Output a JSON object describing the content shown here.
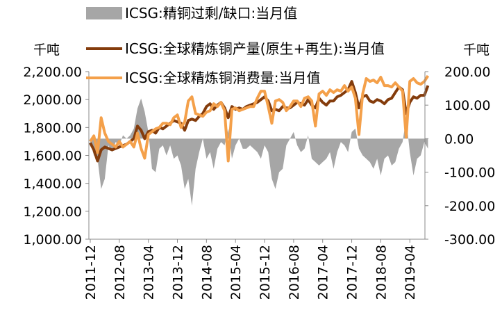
{
  "chart_data": {
    "type": "line",
    "y_unit": "千吨",
    "y2_unit": "千吨",
    "categories": [
      "2011-12",
      null,
      null,
      null,
      null,
      null,
      null,
      null,
      "2012-08",
      null,
      null,
      null,
      null,
      null,
      null,
      null,
      "2013-04",
      null,
      null,
      null,
      null,
      null,
      null,
      null,
      "2013-12",
      null,
      null,
      null,
      null,
      null,
      null,
      null,
      "2014-08",
      null,
      null,
      null,
      null,
      null,
      null,
      null,
      "2015-04",
      null,
      null,
      null,
      null,
      null,
      null,
      null,
      "2015-12",
      null,
      null,
      null,
      null,
      null,
      null,
      null,
      "2016-08",
      null,
      null,
      null,
      null,
      null,
      null,
      null,
      "2017-04",
      null,
      null,
      null,
      null,
      null,
      null,
      null,
      "2017-12",
      null,
      null,
      null,
      null,
      null,
      null,
      null,
      "2018-08",
      null,
      null,
      null,
      null,
      null,
      null,
      null,
      "2019-04",
      null,
      null,
      null,
      null,
      null
    ],
    "series": [
      {
        "name": "ICSG:精铜过剩/缺口:当月值",
        "color": "#a6a6a6",
        "axis": "y2",
        "kind": "area",
        "values": [
          -10,
          -50,
          -60,
          -150,
          -120,
          -20,
          -40,
          -10,
          -20,
          10,
          0,
          10,
          30,
          90,
          120,
          80,
          20,
          -90,
          -100,
          -30,
          -20,
          -50,
          -20,
          -60,
          -50,
          -80,
          -150,
          -120,
          -200,
          -90,
          -40,
          0,
          -60,
          -40,
          -90,
          -30,
          -10,
          -20,
          30,
          -60,
          -20,
          0,
          -30,
          -30,
          -20,
          -30,
          -40,
          -60,
          -20,
          -40,
          -120,
          -150,
          -100,
          -90,
          -20,
          0,
          20,
          -20,
          -40,
          -30,
          10,
          -60,
          -70,
          -80,
          -70,
          -60,
          -40,
          -90,
          -40,
          -10,
          -20,
          -40,
          20,
          30,
          -30,
          -50,
          -60,
          -70,
          -90,
          -60,
          -110,
          -60,
          -50,
          -80,
          -70,
          -30,
          -10,
          60,
          -40,
          -110,
          -60,
          -50,
          -10,
          -30
        ]
      },
      {
        "name": "ICSG:全球精炼铜产量(原生+再生):当月值",
        "color": "#843c0c",
        "kind": "line",
        "values": [
          1690,
          1640,
          1560,
          1640,
          1660,
          1650,
          1640,
          1650,
          1660,
          1670,
          1680,
          1700,
          1720,
          1810,
          1780,
          1720,
          1770,
          1780,
          1760,
          1800,
          1790,
          1810,
          1830,
          1850,
          1840,
          1830,
          1780,
          1850,
          1860,
          1850,
          1880,
          1900,
          1950,
          1970,
          1930,
          1960,
          1980,
          1940,
          1870,
          1950,
          1930,
          1940,
          1930,
          1950,
          1960,
          1970,
          1980,
          2000,
          2020,
          1990,
          1920,
          1930,
          1920,
          1950,
          1940,
          1940,
          1960,
          1980,
          1970,
          1960,
          2000,
          1960,
          1940,
          2010,
          1980,
          1960,
          1990,
          1990,
          2020,
          2030,
          2050,
          2070,
          2130,
          2050,
          1940,
          2020,
          2030,
          1990,
          1980,
          2000,
          1990,
          1970,
          2000,
          2010,
          2050,
          2090,
          2070,
          1900,
          1980,
          2020,
          2010,
          2030,
          2030,
          2100
        ]
      },
      {
        "name": "ICSG:全球精炼铜消费量:当月值",
        "color": "#f4a04a",
        "kind": "line",
        "values": [
          1700,
          1740,
          1620,
          1870,
          1760,
          1700,
          1680,
          1660,
          1700,
          1660,
          1680,
          1700,
          1660,
          1760,
          1650,
          1580,
          1750,
          1770,
          1790,
          1800,
          1830,
          1830,
          1820,
          1870,
          1890,
          1800,
          1840,
          1990,
          2020,
          1900,
          1890,
          1880,
          1910,
          1920,
          1970,
          1950,
          1980,
          1920,
          1560,
          1930,
          1940,
          1920,
          1930,
          1940,
          1950,
          1950,
          2010,
          2060,
          2060,
          1950,
          1830,
          1990,
          2000,
          1980,
          1920,
          1950,
          1990,
          1990,
          1950,
          2010,
          2020,
          1990,
          1810,
          2040,
          2060,
          2030,
          2070,
          2050,
          2070,
          2060,
          2100,
          2060,
          2090,
          2010,
          1750,
          2040,
          2150,
          2130,
          2140,
          2120,
          2160,
          2100,
          2100,
          2090,
          2120,
          2090,
          2060,
          1730,
          2130,
          2150,
          2120,
          2110,
          2130,
          2170
        ]
      }
    ],
    "ylim": [
      1000,
      2200
    ],
    "yticks": [
      {
        "value": 1000,
        "label": "1,000.00"
      },
      {
        "value": 1200,
        "label": "1,200.00"
      },
      {
        "value": 1400,
        "label": "1,400.00"
      },
      {
        "value": 1600,
        "label": "1,600.00"
      },
      {
        "value": 1800,
        "label": "1,800.00"
      },
      {
        "value": 2000,
        "label": "2,000.00"
      },
      {
        "value": 2200,
        "label": "2,200.00"
      }
    ],
    "y2lim": [
      -300,
      200
    ],
    "y2ticks": [
      {
        "value": -300,
        "label": "-300.00"
      },
      {
        "value": -200,
        "label": "-200.00"
      },
      {
        "value": -100,
        "label": "-100.00"
      },
      {
        "value": 0,
        "label": "0.00"
      },
      {
        "value": 100,
        "label": "100.00"
      },
      {
        "value": 200,
        "label": "200.00"
      }
    ]
  }
}
